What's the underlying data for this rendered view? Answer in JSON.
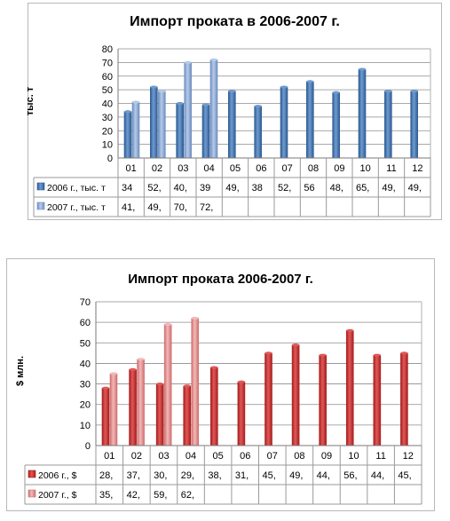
{
  "charts": [
    {
      "id": "tonnes",
      "type": "bar",
      "title": "Импорт проката в 2006-2007 г.",
      "ylabel": "тыс. т",
      "ylim": [
        0,
        80
      ],
      "ystep": 10,
      "categories": [
        "01",
        "02",
        "03",
        "04",
        "05",
        "06",
        "07",
        "08",
        "09",
        "10",
        "11",
        "12"
      ],
      "series": [
        {
          "name": "2006 г., тыс. т",
          "values": [
            34,
            52,
            40,
            39,
            49,
            38,
            52,
            56,
            48,
            65,
            49,
            49
          ],
          "labels": [
            "34",
            "52,",
            "40,",
            "39",
            "49,",
            "38",
            "52,",
            "56",
            "48,",
            "65,",
            "49,",
            "49,"
          ],
          "color": "#2e5c93",
          "light": "#6f9bd0"
        },
        {
          "name": "2007 г., тыс. т",
          "values": [
            41,
            49,
            70,
            72
          ],
          "labels": [
            "41,",
            "49,",
            "70,",
            "72,"
          ],
          "color": "#6f8fbf",
          "light": "#b6cbea"
        }
      ],
      "grid": true,
      "legend": "data-table"
    },
    {
      "id": "dollars",
      "type": "bar",
      "title": "Импорт проката 2006-2007 г.",
      "ylabel": "$ млн.",
      "ylim": [
        0,
        70
      ],
      "ystep": 10,
      "categories": [
        "01",
        "02",
        "03",
        "04",
        "05",
        "06",
        "07",
        "08",
        "09",
        "10",
        "11",
        "12"
      ],
      "series": [
        {
          "name": "2006 г., $",
          "values": [
            28,
            37,
            30,
            29,
            38,
            31,
            45,
            49,
            44,
            56,
            44,
            45
          ],
          "labels": [
            "28,",
            "37,",
            "30,",
            "29,",
            "38,",
            "31,",
            "45,",
            "49,",
            "44,",
            "56,",
            "44,",
            "45,"
          ],
          "color": "#a81e1e",
          "light": "#e05858"
        },
        {
          "name": "2007 г., $",
          "values": [
            35,
            42,
            59,
            62
          ],
          "labels": [
            "35,",
            "42,",
            "59,",
            "62,"
          ],
          "color": "#d07070",
          "light": "#f3b8b8"
        }
      ],
      "grid": true,
      "legend": "data-table"
    }
  ]
}
